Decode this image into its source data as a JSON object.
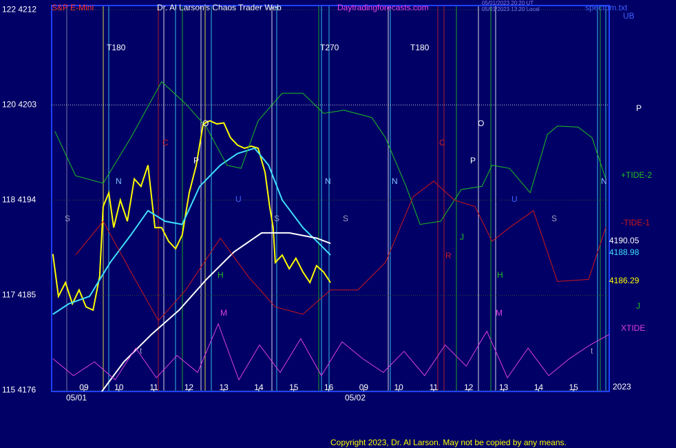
{
  "chart_data": {
    "type": "line",
    "title": "Dr. Al Larson's Chaos Trader Web",
    "instrument": "S&P E-Mini",
    "site": "Daytradingforecasts.com",
    "timestamps": [
      "05/01/2023 20:20 UT",
      "05/01/2023 13:20 Local"
    ],
    "file": "spectom.txt",
    "corner_label": "UB",
    "year_label": "2023",
    "dates": [
      "05/01",
      "05/02"
    ],
    "copyright": "Copyright 2023, Dr. Al Larson. May not be copied by any means.",
    "xlim": [
      0.075,
      16.02
    ],
    "xticks": [
      {
        "value": 1,
        "label": "09"
      },
      {
        "value": 2,
        "label": "10"
      },
      {
        "value": 3,
        "label": "11"
      },
      {
        "value": 4,
        "label": "12"
      },
      {
        "value": 5,
        "label": "13"
      },
      {
        "value": 6,
        "label": "14"
      },
      {
        "value": 7,
        "label": "15"
      },
      {
        "value": 8,
        "label": "16"
      },
      {
        "value": 9,
        "label": "09"
      },
      {
        "value": 10,
        "label": "10"
      },
      {
        "value": 11,
        "label": "11"
      },
      {
        "value": 12,
        "label": "12"
      },
      {
        "value": 13,
        "label": "13"
      },
      {
        "value": 14,
        "label": "14"
      },
      {
        "value": 15,
        "label": "15"
      }
    ],
    "ylim": [
      4175.9,
      4212.4
    ],
    "yticks": [
      {
        "value": 4212,
        "label": "122  4212"
      },
      {
        "value": 4203,
        "label": "120  4203"
      },
      {
        "value": 4194,
        "label": "118  4194"
      },
      {
        "value": 4185,
        "label": "117  4185"
      },
      {
        "value": 4176,
        "label": "115  4176"
      }
    ],
    "grid": true,
    "series": [
      {
        "color": "#ffff00",
        "x": [
          0.11,
          0.27,
          0.47,
          0.67,
          0.86,
          1.06,
          1.26,
          1.45,
          1.55,
          1.71,
          1.85,
          2.04,
          2.24,
          2.44,
          2.63,
          2.83,
          3.03,
          3.22,
          3.42,
          3.62,
          3.81,
          4.01,
          4.21,
          4.41,
          4.6,
          4.8,
          5.0,
          5.19,
          5.39,
          5.59,
          5.78,
          5.98,
          6.18,
          6.31,
          6.41,
          6.47,
          6.67,
          6.87,
          7.06,
          7.26,
          7.46,
          7.65,
          7.85,
          8.05
        ],
        "values": [
          4188.9,
          4184.9,
          4186.2,
          4184.2,
          4185.5,
          4183.9,
          4183.6,
          4186.8,
          4193.4,
          4194.7,
          4191.4,
          4194.0,
          4192.0,
          4196.0,
          4195.3,
          4197.3,
          4191.4,
          4191.4,
          4190.1,
          4189.4,
          4190.7,
          4194.7,
          4197.3,
          4201.2,
          4201.5,
          4201.2,
          4201.3,
          4199.9,
          4199.2,
          4198.9,
          4199.1,
          4198.9,
          4196.6,
          4193.4,
          4191.4,
          4188.1,
          4188.8,
          4187.5,
          4188.5,
          4187.2,
          4186.2,
          4187.8,
          4187.2,
          4186.2
        ]
      },
      {
        "color": "#40e0ff",
        "x": [
          0.11,
          0.57,
          1.16,
          1.75,
          2.34,
          2.83,
          3.32,
          3.81,
          4.31,
          4.9,
          5.39,
          5.88,
          6.28,
          6.67,
          7.26,
          7.75,
          8.05
        ],
        "values": [
          4183.2,
          4184.2,
          4184.9,
          4188.1,
          4190.7,
          4193.0,
          4192.0,
          4191.7,
          4195.3,
          4197.3,
          4198.4,
          4198.9,
          4197.3,
          4194.0,
          4191.4,
          4189.8,
          4188.8
        ]
      },
      {
        "color": "#ffffff",
        "x": [
          1.51,
          2.14,
          2.93,
          3.72,
          4.5,
          5.29,
          6.08,
          6.87,
          7.65,
          8.05
        ],
        "values": [
          4175.9,
          4178.7,
          4181.3,
          4183.6,
          4186.5,
          4189.1,
          4190.9,
          4190.9,
          4190.4,
          4189.9
        ]
      },
      {
        "name": "+TIDE-2",
        "color": "#20c020",
        "x": [
          0.17,
          0.76,
          1.55,
          2.34,
          3.22,
          3.91,
          4.5,
          5.09,
          5.49,
          5.98,
          6.67,
          7.26,
          7.85,
          8.44,
          9.23,
          9.62,
          10.21,
          10.61,
          11.2,
          11.79,
          12.38,
          12.67,
          13.17,
          13.76,
          14.25,
          14.54,
          15.13,
          15.53,
          15.92
        ],
        "values": [
          4200.5,
          4196.3,
          4195.6,
          4199.9,
          4205.2,
          4203.1,
          4200.9,
          4197.3,
          4197.0,
          4201.5,
          4204.1,
          4204.1,
          4202.2,
          4202.5,
          4201.8,
          4199.9,
          4195.3,
          4191.7,
          4192.0,
          4195.0,
          4195.3,
          4197.3,
          4197.0,
          4194.7,
          4200.2,
          4201.0,
          4200.9,
          4199.9,
          4196.0
        ]
      },
      {
        "name": "-TIDE-1",
        "color": "#d01818",
        "x": [
          0.76,
          1.55,
          2.34,
          3.13,
          3.91,
          4.9,
          5.69,
          6.47,
          7.26,
          8.05,
          8.83,
          9.62,
          10.41,
          11.0,
          11.59,
          12.18,
          12.67,
          13.17,
          13.85,
          14.54,
          15.43,
          15.92
        ],
        "values": [
          4188.8,
          4192.0,
          4187.2,
          4182.6,
          4185.5,
          4190.4,
          4186.8,
          4183.9,
          4183.2,
          4185.5,
          4185.5,
          4188.1,
          4194.3,
          4195.8,
          4194.0,
          4193.4,
          4190.1,
          4191.4,
          4193.0,
          4186.3,
          4186.5,
          4191.4
        ]
      },
      {
        "name": "XTIDE",
        "color": "#e040e0",
        "x": [
          0.11,
          0.7,
          1.3,
          1.89,
          2.48,
          3.07,
          3.66,
          4.25,
          4.84,
          5.43,
          6.02,
          6.61,
          7.2,
          7.79,
          8.38,
          8.97,
          9.56,
          10.15,
          10.74,
          11.33,
          11.93,
          12.52,
          13.11,
          13.7,
          14.29,
          14.88,
          15.47,
          16.02
        ],
        "values": [
          4179.0,
          4177.4,
          4178.7,
          4177.0,
          4180.0,
          4177.2,
          4179.3,
          4177.7,
          4182.3,
          4177.0,
          4180.3,
          4177.7,
          4180.9,
          4177.4,
          4180.6,
          4179.0,
          4177.7,
          4179.7,
          4177.4,
          4180.3,
          4178.3,
          4181.6,
          4177.2,
          4180.0,
          4177.4,
          4179.0,
          4180.3,
          4181.3
        ]
      }
    ],
    "last_prices": [
      "4190.05",
      "4188.98",
      "4186.29"
    ],
    "side_labels": [
      "P",
      "J"
    ],
    "annotations": [
      "T180",
      "T270",
      "T180",
      "S",
      "S",
      "S",
      "S",
      "N",
      "N",
      "N",
      "N",
      "C",
      "C",
      "O",
      "O",
      "P",
      "P",
      "H",
      "H",
      "M",
      "M",
      "R",
      "J",
      "U",
      "U",
      "t",
      "t"
    ]
  }
}
